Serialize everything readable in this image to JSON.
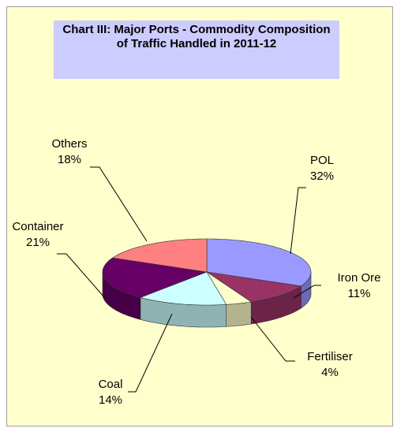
{
  "chart_data": {
    "type": "pie",
    "title": "Chart III: Major Ports - Commodity Composition of Traffic Handled in 2011-12",
    "categories": [
      "POL",
      "Iron Ore",
      "Fertiliser",
      "Coal",
      "Container",
      "Others"
    ],
    "values": [
      32,
      11,
      4,
      14,
      21,
      18
    ],
    "value_labels": [
      "32%",
      "11%",
      "4%",
      "14%",
      "21%",
      "18%"
    ],
    "colors": [
      "#9999ff",
      "#993366",
      "#ffffcc",
      "#ccffff",
      "#660066",
      "#ff8080"
    ]
  }
}
